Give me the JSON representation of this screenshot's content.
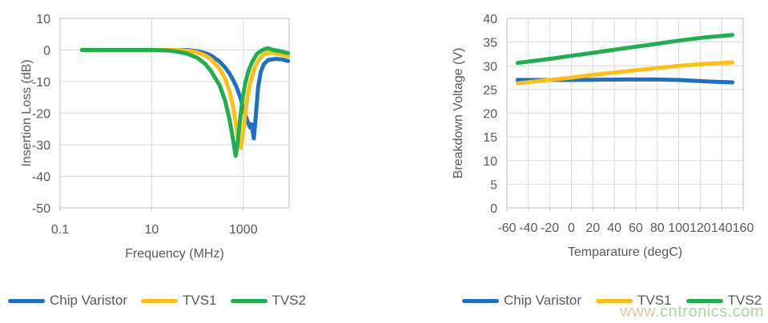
{
  "watermark": {
    "prefix": "www.",
    "domain": "cntronics.com",
    "prefix_color": "#D8CBA6",
    "domain_color": "#AFD79E"
  },
  "palette": {
    "axis_text": "#595959",
    "gridline": "#D9D9D9",
    "plot_border": "#BFBFBF",
    "background": "#FFFFFF"
  },
  "chart_data": [
    {
      "type": "line",
      "title": "",
      "xlabel": "Frequency (MHz)",
      "ylabel": "Insertion Loss (dB)",
      "x_scale": "log",
      "xlim": [
        0.1,
        10000
      ],
      "x_ticks": [
        0.1,
        10,
        1000
      ],
      "x_tick_labels": [
        "0.1",
        "10",
        "1000"
      ],
      "ylim": [
        -50,
        10
      ],
      "y_ticks": [
        10,
        0,
        -10,
        -20,
        -30,
        -40,
        -50
      ],
      "grid": true,
      "legend_position": "bottom",
      "series": [
        {
          "name": "Chip Varistor",
          "color": "#1E6FC6",
          "points": [
            [
              0.3,
              0
            ],
            [
              1,
              0
            ],
            [
              3,
              0
            ],
            [
              10,
              0
            ],
            [
              30,
              0
            ],
            [
              60,
              0
            ],
            [
              100,
              -0.4
            ],
            [
              150,
              -1
            ],
            [
              200,
              -1.8
            ],
            [
              300,
              -3.6
            ],
            [
              400,
              -5.5
            ],
            [
              500,
              -7.5
            ],
            [
              600,
              -9.5
            ],
            [
              700,
              -11.5
            ],
            [
              800,
              -13.8
            ],
            [
              900,
              -16
            ],
            [
              1000,
              -18.5
            ],
            [
              1100,
              -20.5
            ],
            [
              1200,
              -22
            ],
            [
              1400,
              -24.5
            ],
            [
              1500,
              -23.5
            ],
            [
              1700,
              -28
            ],
            [
              1900,
              -20
            ],
            [
              2100,
              -12
            ],
            [
              2400,
              -7
            ],
            [
              2800,
              -4.5
            ],
            [
              3500,
              -3.2
            ],
            [
              5000,
              -2.8
            ],
            [
              7000,
              -3
            ],
            [
              9500,
              -3.5
            ]
          ]
        },
        {
          "name": "TVS1",
          "color": "#FFC013",
          "points": [
            [
              0.3,
              0
            ],
            [
              1,
              0
            ],
            [
              10,
              0
            ],
            [
              40,
              0
            ],
            [
              70,
              -0.3
            ],
            [
              100,
              -0.8
            ],
            [
              150,
              -1.8
            ],
            [
              200,
              -3
            ],
            [
              300,
              -5.8
            ],
            [
              400,
              -9
            ],
            [
              500,
              -13
            ],
            [
              600,
              -18
            ],
            [
              700,
              -24
            ],
            [
              800,
              -29.5
            ],
            [
              880,
              -31
            ],
            [
              950,
              -28.5
            ],
            [
              1050,
              -23
            ],
            [
              1200,
              -16
            ],
            [
              1400,
              -10.5
            ],
            [
              1700,
              -6.5
            ],
            [
              2000,
              -4
            ],
            [
              2500,
              -2
            ],
            [
              3000,
              -1.2
            ],
            [
              4000,
              -0.8
            ],
            [
              5000,
              -1
            ],
            [
              7000,
              -1.5
            ],
            [
              9500,
              -2
            ]
          ]
        },
        {
          "name": "TVS2",
          "color": "#1FAF4F",
          "points": [
            [
              0.3,
              0
            ],
            [
              1,
              0
            ],
            [
              10,
              0
            ],
            [
              25,
              -0.2
            ],
            [
              40,
              -0.6
            ],
            [
              60,
              -1.2
            ],
            [
              100,
              -2.5
            ],
            [
              150,
              -4.5
            ],
            [
              200,
              -6.8
            ],
            [
              300,
              -11
            ],
            [
              400,
              -16
            ],
            [
              500,
              -22
            ],
            [
              600,
              -28.5
            ],
            [
              680,
              -33.5
            ],
            [
              760,
              -29
            ],
            [
              850,
              -22
            ],
            [
              950,
              -16
            ],
            [
              1100,
              -10.5
            ],
            [
              1300,
              -6.5
            ],
            [
              1600,
              -3.5
            ],
            [
              2000,
              -1.2
            ],
            [
              2500,
              -0.2
            ],
            [
              3000,
              0.3
            ],
            [
              3500,
              0.5
            ],
            [
              4500,
              0
            ],
            [
              6000,
              -0.3
            ],
            [
              9500,
              -1
            ]
          ]
        }
      ]
    },
    {
      "type": "line",
      "title": "",
      "xlabel": "Temparature (degC)",
      "ylabel": "Breakdown Voltage (V)",
      "x_scale": "linear",
      "xlim": [
        -60,
        160
      ],
      "x_ticks": [
        -60,
        -40,
        -20,
        0,
        20,
        40,
        60,
        80,
        100,
        120,
        140,
        160
      ],
      "x_tick_labels": [
        "-60",
        "-40",
        "-20",
        "0",
        "20",
        "40",
        "60",
        "80",
        "100",
        "120",
        "140",
        "160"
      ],
      "ylim": [
        0,
        40
      ],
      "y_ticks": [
        40,
        35,
        30,
        25,
        20,
        15,
        10,
        5,
        0
      ],
      "grid": true,
      "legend_position": "bottom",
      "series": [
        {
          "name": "Chip Varistor",
          "color": "#1E6FC6",
          "points": [
            [
              -50,
              27
            ],
            [
              -25,
              27
            ],
            [
              0,
              27
            ],
            [
              25,
              27.05
            ],
            [
              50,
              27.1
            ],
            [
              75,
              27.1
            ],
            [
              100,
              27
            ],
            [
              125,
              26.7
            ],
            [
              150,
              26.5
            ]
          ]
        },
        {
          "name": "TVS1",
          "color": "#FFC013",
          "points": [
            [
              -50,
              26.3
            ],
            [
              -25,
              26.9
            ],
            [
              0,
              27.5
            ],
            [
              25,
              28.2
            ],
            [
              50,
              28.8
            ],
            [
              75,
              29.4
            ],
            [
              100,
              30
            ],
            [
              125,
              30.4
            ],
            [
              150,
              30.7
            ]
          ]
        },
        {
          "name": "TVS2",
          "color": "#1FAF4F",
          "points": [
            [
              -50,
              30.6
            ],
            [
              -25,
              31.3
            ],
            [
              0,
              32.1
            ],
            [
              25,
              32.9
            ],
            [
              50,
              33.7
            ],
            [
              75,
              34.5
            ],
            [
              100,
              35.3
            ],
            [
              125,
              36
            ],
            [
              150,
              36.5
            ]
          ]
        }
      ]
    }
  ]
}
